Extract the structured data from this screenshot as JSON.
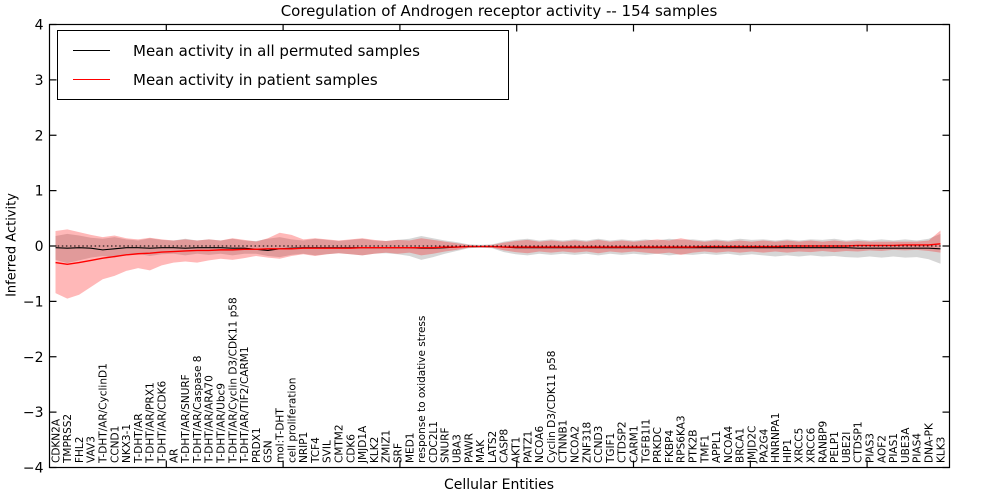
{
  "title": "Coregulation of Androgen receptor activity -- 154 samples",
  "axes": {
    "ylabel": "Inferred Activity",
    "xlabel": "Cellular Entities",
    "yticks": [
      "4",
      "3",
      "2",
      "1",
      "0",
      "−1",
      "−2",
      "−3",
      "−4"
    ]
  },
  "legend": {
    "items": [
      {
        "label": "Mean activity in all permuted samples",
        "color": "#000000"
      },
      {
        "label": "Mean activity in patient samples",
        "color": "#ff0000"
      }
    ]
  },
  "chart_data": {
    "type": "line",
    "title": "Coregulation of Androgen receptor activity -- 154 samples",
    "xlabel": "Cellular Entities",
    "ylabel": "Inferred Activity",
    "ylim": [
      -4,
      4
    ],
    "grid": false,
    "zero_line": true,
    "legend_position": "upper left",
    "categories": [
      "CDKN2A",
      "TMPRSS2",
      "FHL2",
      "VAV3",
      "T-DHT/AR/CyclinD1",
      "CCND1",
      "NKX3-1",
      "T-DHT/AR",
      "T-DHT/AR/PRX1",
      "T-DHT/AR/CDK6",
      "AR",
      "T-DHT/AR/SNURF",
      "T-DHT/AR/Caspase 8",
      "T-DHT/AR/ARA70",
      "T-DHT/AR/Ubc9",
      "T-DHT/AR/Cyclin D3/CDK11 p58",
      "T-DHT/AR/TIF2/CARM1",
      "PRDX1",
      "GSN",
      "mol:T-DHT",
      "cell proliferation",
      "NRIP1",
      "TCF4",
      "SVIL",
      "CMTM2",
      "CDK6",
      "JMJD1A",
      "KLK2",
      "ZMIZ1",
      "SRF",
      "MED1",
      "response to oxidative stress",
      "CDC2L1",
      "SNURF",
      "UBA3",
      "PAWR",
      "MAK",
      "LATS2",
      "CASP8",
      "AKT1",
      "PATZ1",
      "NCOA6",
      "Cyclin D3/CDK11 p58",
      "CTNNB1",
      "NCOA2",
      "ZNF318",
      "CCND3",
      "TGIF1",
      "CTDSP2",
      "CARM1",
      "TGFB1I1",
      "PRKDC",
      "FKBP4",
      "RPS6KA3",
      "PTK2B",
      "TMF1",
      "APPL1",
      "NCOA4",
      "BRCA1",
      "JMJD2C",
      "PA2G4",
      "HNRNPA1",
      "HIP1",
      "XRCC5",
      "XRCC6",
      "RANBP9",
      "PELP1",
      "UBE2I",
      "CTDSP1",
      "PIAS3",
      "AOF2",
      "PIAS1",
      "UBE3A",
      "PIAS4",
      "DNA-PK",
      "KLK3"
    ],
    "series": [
      {
        "name": "Mean activity in all permuted samples",
        "color": "#000000",
        "values": [
          -0.03,
          -0.04,
          -0.03,
          -0.04,
          -0.07,
          -0.05,
          -0.03,
          -0.03,
          -0.04,
          -0.03,
          -0.03,
          -0.04,
          -0.03,
          -0.03,
          -0.03,
          -0.04,
          -0.04,
          -0.06,
          -0.08,
          -0.05,
          -0.04,
          -0.03,
          -0.03,
          -0.03,
          -0.03,
          -0.03,
          -0.03,
          -0.03,
          -0.03,
          -0.03,
          -0.03,
          -0.04,
          -0.04,
          -0.03,
          -0.02,
          -0.01,
          -0.01,
          -0.01,
          -0.02,
          -0.03,
          -0.03,
          -0.03,
          -0.03,
          -0.03,
          -0.03,
          -0.03,
          -0.03,
          -0.03,
          -0.03,
          -0.03,
          -0.03,
          -0.03,
          -0.03,
          -0.03,
          -0.03,
          -0.03,
          -0.03,
          -0.03,
          -0.03,
          -0.03,
          -0.03,
          -0.03,
          -0.03,
          -0.03,
          -0.03,
          -0.03,
          -0.03,
          -0.03,
          -0.04,
          -0.04,
          -0.04,
          -0.04,
          -0.04,
          -0.04,
          -0.04,
          -0.05
        ]
      },
      {
        "name": "Mean activity in patient samples",
        "color": "#ff0000",
        "values": [
          -0.3,
          -0.33,
          -0.3,
          -0.26,
          -0.22,
          -0.19,
          -0.16,
          -0.14,
          -0.13,
          -0.11,
          -0.1,
          -0.09,
          -0.08,
          -0.08,
          -0.07,
          -0.07,
          -0.06,
          -0.06,
          -0.05,
          -0.05,
          -0.05,
          -0.04,
          -0.04,
          -0.04,
          -0.04,
          -0.04,
          -0.03,
          -0.03,
          -0.03,
          -0.03,
          -0.03,
          -0.03,
          -0.03,
          -0.02,
          -0.02,
          -0.01,
          -0.01,
          -0.01,
          -0.02,
          -0.02,
          -0.02,
          -0.02,
          -0.02,
          -0.02,
          -0.02,
          -0.02,
          -0.02,
          -0.02,
          -0.02,
          -0.02,
          -0.02,
          -0.02,
          -0.02,
          -0.02,
          -0.02,
          -0.01,
          -0.01,
          -0.01,
          -0.01,
          -0.01,
          -0.01,
          -0.01,
          0.0,
          0.0,
          0.0,
          0.0,
          0.0,
          0.0,
          0.01,
          0.01,
          0.01,
          0.01,
          0.02,
          0.02,
          0.02,
          0.04
        ]
      }
    ],
    "bands": [
      {
        "name": "permuted-samples",
        "color": "#000000",
        "opacity": 0.16,
        "upper": [
          0.18,
          0.22,
          0.19,
          0.15,
          0.13,
          0.16,
          0.12,
          0.1,
          0.14,
          0.11,
          0.1,
          0.13,
          0.1,
          0.12,
          0.1,
          0.13,
          0.1,
          0.09,
          0.13,
          0.16,
          0.12,
          0.1,
          0.13,
          0.11,
          0.09,
          0.11,
          0.13,
          0.1,
          0.09,
          0.11,
          0.13,
          0.18,
          0.14,
          0.1,
          0.07,
          0.03,
          0.02,
          0.03,
          0.08,
          0.11,
          0.13,
          0.1,
          0.12,
          0.1,
          0.12,
          0.1,
          0.13,
          0.1,
          0.12,
          0.1,
          0.12,
          0.1,
          0.13,
          0.11,
          0.12,
          0.1,
          0.12,
          0.1,
          0.13,
          0.11,
          0.12,
          0.1,
          0.12,
          0.1,
          0.12,
          0.11,
          0.13,
          0.1,
          0.12,
          0.1,
          0.12,
          0.1,
          0.12,
          0.1,
          0.13,
          0.22
        ],
        "lower": [
          -0.25,
          -0.31,
          -0.26,
          -0.21,
          -0.18,
          -0.21,
          -0.16,
          -0.14,
          -0.18,
          -0.15,
          -0.14,
          -0.17,
          -0.14,
          -0.16,
          -0.14,
          -0.17,
          -0.14,
          -0.14,
          -0.18,
          -0.2,
          -0.16,
          -0.14,
          -0.17,
          -0.15,
          -0.13,
          -0.15,
          -0.17,
          -0.14,
          -0.13,
          -0.15,
          -0.18,
          -0.25,
          -0.2,
          -0.14,
          -0.09,
          -0.04,
          -0.03,
          -0.04,
          -0.11,
          -0.15,
          -0.17,
          -0.14,
          -0.16,
          -0.14,
          -0.16,
          -0.14,
          -0.17,
          -0.14,
          -0.16,
          -0.14,
          -0.16,
          -0.14,
          -0.17,
          -0.15,
          -0.16,
          -0.14,
          -0.16,
          -0.14,
          -0.17,
          -0.15,
          -0.17,
          -0.19,
          -0.17,
          -0.19,
          -0.17,
          -0.19,
          -0.18,
          -0.2,
          -0.21,
          -0.19,
          -0.21,
          -0.19,
          -0.21,
          -0.2,
          -0.24,
          -0.32
        ]
      },
      {
        "name": "patient-samples",
        "color": "#ff0000",
        "opacity": 0.28,
        "upper": [
          0.27,
          0.3,
          0.25,
          0.2,
          0.16,
          0.19,
          0.14,
          0.12,
          0.15,
          0.12,
          0.1,
          0.12,
          0.1,
          0.12,
          0.1,
          0.14,
          0.11,
          0.08,
          0.14,
          0.24,
          0.2,
          0.12,
          0.14,
          0.12,
          0.1,
          0.12,
          0.14,
          0.11,
          0.09,
          0.11,
          0.1,
          0.14,
          0.11,
          0.08,
          0.05,
          0.02,
          0.01,
          0.02,
          0.06,
          0.09,
          0.11,
          0.08,
          0.1,
          0.08,
          0.1,
          0.08,
          0.11,
          0.08,
          0.1,
          0.08,
          0.1,
          0.12,
          0.1,
          0.14,
          0.1,
          0.08,
          0.1,
          0.08,
          0.1,
          0.08,
          0.1,
          0.08,
          0.1,
          0.08,
          0.1,
          0.08,
          0.1,
          0.08,
          0.09,
          0.08,
          0.08,
          0.08,
          0.08,
          0.08,
          0.1,
          0.28
        ],
        "lower": [
          -0.85,
          -0.95,
          -0.88,
          -0.74,
          -0.6,
          -0.54,
          -0.45,
          -0.4,
          -0.44,
          -0.35,
          -0.3,
          -0.28,
          -0.3,
          -0.26,
          -0.23,
          -0.25,
          -0.22,
          -0.18,
          -0.21,
          -0.23,
          -0.18,
          -0.15,
          -0.18,
          -0.15,
          -0.13,
          -0.15,
          -0.17,
          -0.14,
          -0.12,
          -0.14,
          -0.12,
          -0.17,
          -0.14,
          -0.1,
          -0.07,
          -0.03,
          -0.02,
          -0.03,
          -0.08,
          -0.11,
          -0.13,
          -0.1,
          -0.12,
          -0.1,
          -0.12,
          -0.1,
          -0.13,
          -0.1,
          -0.12,
          -0.1,
          -0.12,
          -0.14,
          -0.12,
          -0.16,
          -0.12,
          -0.1,
          -0.12,
          -0.1,
          -0.12,
          -0.1,
          -0.12,
          -0.1,
          -0.12,
          -0.1,
          -0.11,
          -0.09,
          -0.11,
          -0.09,
          -0.1,
          -0.08,
          -0.09,
          -0.07,
          -0.08,
          -0.07,
          -0.09,
          -0.12
        ]
      }
    ]
  }
}
